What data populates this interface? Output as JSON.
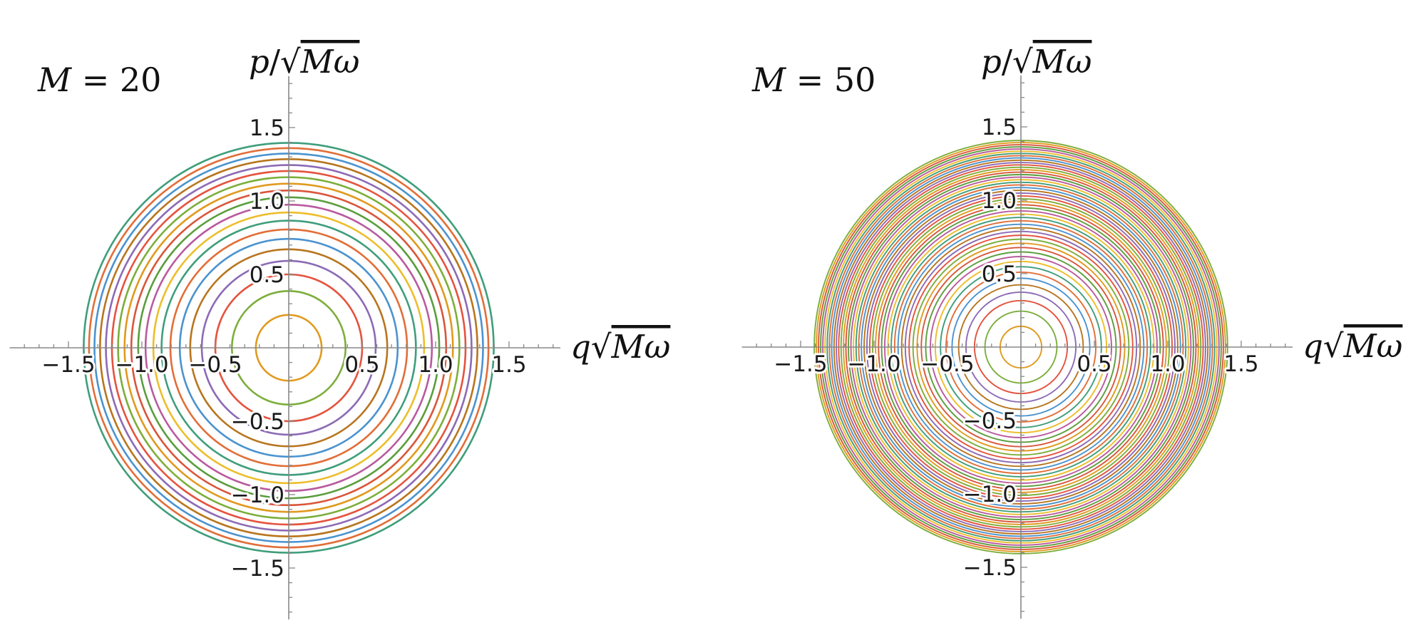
{
  "chart_data": [
    {
      "type": "line",
      "subtype": "phase-space contour circles",
      "annotation": {
        "var": "M",
        "eq": "=",
        "value": "20"
      },
      "xlabel": {
        "prefix": "q",
        "radicand": "Mω",
        "sep": ""
      },
      "ylabel": {
        "prefix": "p",
        "radicand": "Mω",
        "sep": "/"
      },
      "xlim": [
        -1.9,
        1.85
      ],
      "ylim": [
        -1.85,
        1.85
      ],
      "xticks": [
        -1.5,
        -1.0,
        -0.5,
        0.5,
        1.0,
        1.5
      ],
      "yticks": [
        -1.5,
        -1.0,
        -0.5,
        0.5,
        1.0,
        1.5
      ],
      "xtick_labels": [
        "−1.5",
        "−1.0",
        "−0.5",
        "0.5",
        "1.0",
        "1.5"
      ],
      "ytick_labels": [
        "−1.5",
        "−1.0",
        "−0.5",
        "0.5",
        "1.0",
        "1.5"
      ],
      "curve_count": 20,
      "radius_formula": "r_n = sqrt((2n+1)/M), n = 0..M-1",
      "radii": [
        0.224,
        0.387,
        0.5,
        0.592,
        0.671,
        0.742,
        0.806,
        0.866,
        0.922,
        0.975,
        1.025,
        1.072,
        1.118,
        1.162,
        1.204,
        1.245,
        1.285,
        1.323,
        1.36,
        1.396
      ],
      "grid": false,
      "palette": [
        "#E09A1F",
        "#7CAE3B",
        "#E5533E",
        "#8C6BB5",
        "#B8751E",
        "#4B93CF",
        "#E26E38",
        "#3F9E7B",
        "#EDBE2B",
        "#B95A9E",
        "#5B9E3E",
        "#D9563B"
      ]
    },
    {
      "type": "line",
      "subtype": "phase-space contour circles",
      "annotation": {
        "var": "M",
        "eq": "=",
        "value": "50"
      },
      "xlabel": {
        "prefix": "q",
        "radicand": "Mω",
        "sep": ""
      },
      "ylabel": {
        "prefix": "p",
        "radicand": "Mω",
        "sep": "/"
      },
      "xlim": [
        -1.9,
        1.85
      ],
      "ylim": [
        -1.85,
        1.85
      ],
      "xticks": [
        -1.5,
        -1.0,
        -0.5,
        0.5,
        1.0,
        1.5
      ],
      "yticks": [
        -1.5,
        -1.0,
        -0.5,
        0.5,
        1.0,
        1.5
      ],
      "xtick_labels": [
        "−1.5",
        "−1.0",
        "−0.5",
        "0.5",
        "1.0",
        "1.5"
      ],
      "ytick_labels": [
        "−1.5",
        "−1.0",
        "−0.5",
        "0.5",
        "1.0",
        "1.5"
      ],
      "curve_count": 50,
      "radius_formula": "r_n = sqrt((2n+1)/M), n = 0..M-1",
      "grid": false,
      "palette": [
        "#E09A1F",
        "#7CAE3B",
        "#E5533E",
        "#8C6BB5",
        "#B8751E",
        "#4B93CF",
        "#E26E38",
        "#3F9E7B",
        "#EDBE2B",
        "#B95A9E",
        "#5B9E3E",
        "#D9563B"
      ]
    }
  ]
}
